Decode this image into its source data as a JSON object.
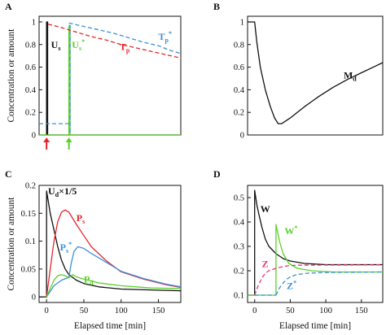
{
  "figure": {
    "ylabel": "Concentration or amount",
    "xlabel": "Elapsed time [min]"
  },
  "chart_data": [
    {
      "panel": "A",
      "type": "line",
      "xlim": [
        -10,
        180
      ],
      "ylim": [
        0,
        1.05
      ],
      "x_ticks": [],
      "y_ticks": [
        0,
        0.2,
        0.4,
        0.6,
        0.8,
        1
      ],
      "arrows": [
        {
          "x": 0,
          "color": "#e8242b"
        },
        {
          "x": 30,
          "color": "#5ad02b"
        }
      ],
      "series": [
        {
          "name": "Us",
          "label": "U",
          "sub": "s",
          "sup": "",
          "color": "#111111",
          "dash": false,
          "label_at": [
            6,
            0.77
          ],
          "points": [
            [
              -10,
              0
            ],
            [
              0,
              0
            ],
            [
              0,
              1
            ],
            [
              1.5,
              1
            ],
            [
              1.5,
              0
            ],
            [
              180,
              0
            ]
          ]
        },
        {
          "name": "Us*",
          "label": "U",
          "sub": "s",
          "sup": "*",
          "color": "#5ad02b",
          "dash": false,
          "label_at": [
            34,
            0.77
          ],
          "points": [
            [
              -10,
              0
            ],
            [
              30,
              0
            ],
            [
              30,
              0.96
            ],
            [
              31.5,
              0.96
            ],
            [
              31.5,
              0
            ],
            [
              180,
              0
            ]
          ]
        },
        {
          "name": "Us* (dashed)",
          "label": "",
          "sub": "",
          "sup": "",
          "color": "#3b8fd8",
          "dash": true,
          "label_at": null,
          "points": [
            [
              30,
              0.97
            ],
            [
              31.5,
              0.97
            ],
            [
              31.5,
              0.01
            ]
          ]
        },
        {
          "name": "Tp",
          "label": "T",
          "sub": "p",
          "sup": "",
          "color": "#e8242b",
          "dash": true,
          "label_at": [
            98,
            0.75
          ],
          "points": [
            [
              2,
              0.98
            ],
            [
              20,
              0.95
            ],
            [
              40,
              0.91
            ],
            [
              60,
              0.87
            ],
            [
              80,
              0.84
            ],
            [
              100,
              0.8
            ],
            [
              120,
              0.77
            ],
            [
              140,
              0.74
            ],
            [
              160,
              0.71
            ],
            [
              180,
              0.68
            ]
          ]
        },
        {
          "name": "Tp*",
          "label": "T",
          "sub": "p",
          "sup": "*",
          "color": "#3b8fd8",
          "dash": true,
          "label_at": [
            150,
            0.84
          ],
          "points": [
            [
              30,
              0.99
            ],
            [
              50,
              0.96
            ],
            [
              70,
              0.93
            ],
            [
              90,
              0.9
            ],
            [
              110,
              0.86
            ],
            [
              130,
              0.82
            ],
            [
              150,
              0.79
            ],
            [
              165,
              0.75
            ],
            [
              180,
              0.72
            ]
          ]
        },
        {
          "name": "baseline",
          "label": "",
          "sub": "",
          "sup": "",
          "color": "#3b8fd8",
          "dash": true,
          "label_at": null,
          "points": [
            [
              -10,
              0.1
            ],
            [
              30,
              0.1
            ]
          ]
        }
      ]
    },
    {
      "panel": "B",
      "type": "line",
      "xlim": [
        -10,
        180
      ],
      "ylim": [
        0,
        1.05
      ],
      "x_ticks": [],
      "y_ticks": [
        0,
        0.2,
        0.4,
        0.6,
        0.8,
        1
      ],
      "arrows": [],
      "series": [
        {
          "name": "Md",
          "label": "M",
          "sub": "d",
          "sup": "",
          "color": "#111111",
          "dash": false,
          "label_at": [
            125,
            0.5
          ],
          "points": [
            [
              -10,
              1
            ],
            [
              0,
              1
            ],
            [
              3,
              0.82
            ],
            [
              8,
              0.6
            ],
            [
              15,
              0.4
            ],
            [
              22,
              0.25
            ],
            [
              28,
              0.15
            ],
            [
              33,
              0.1
            ],
            [
              38,
              0.1
            ],
            [
              50,
              0.15
            ],
            [
              70,
              0.25
            ],
            [
              90,
              0.34
            ],
            [
              110,
              0.42
            ],
            [
              130,
              0.49
            ],
            [
              150,
              0.55
            ],
            [
              170,
              0.61
            ],
            [
              180,
              0.64
            ]
          ]
        }
      ]
    },
    {
      "panel": "C",
      "type": "line",
      "xlim": [
        -10,
        180
      ],
      "ylim": [
        -0.01,
        0.2
      ],
      "x_ticks": [
        0,
        50,
        100,
        150
      ],
      "y_ticks": [
        0,
        0.05,
        0.1,
        0.15,
        0.2
      ],
      "arrows": [],
      "series": [
        {
          "name": "Ud x 1/5",
          "label": "U",
          "sub": "d",
          "sup": "",
          "suffix": "×1/5",
          "color": "#111111",
          "dash": false,
          "label_at": [
            2,
            0.184
          ],
          "points": [
            [
              -10,
              0
            ],
            [
              0,
              0
            ],
            [
              0,
              0.19
            ],
            [
              5,
              0.15
            ],
            [
              10,
              0.12
            ],
            [
              15,
              0.09
            ],
            [
              20,
              0.066
            ],
            [
              25,
              0.05
            ],
            [
              30,
              0.04
            ],
            [
              40,
              0.03
            ],
            [
              50,
              0.024
            ],
            [
              70,
              0.018
            ],
            [
              100,
              0.014
            ],
            [
              150,
              0.012
            ],
            [
              180,
              0.011
            ]
          ]
        },
        {
          "name": "Ps",
          "label": "P",
          "sub": "s",
          "sup": "",
          "color": "#e8242b",
          "dash": false,
          "label_at": [
            40,
            0.136
          ],
          "points": [
            [
              0,
              0
            ],
            [
              5,
              0.05
            ],
            [
              10,
              0.1
            ],
            [
              15,
              0.135
            ],
            [
              20,
              0.152
            ],
            [
              25,
              0.156
            ],
            [
              30,
              0.152
            ],
            [
              40,
              0.13
            ],
            [
              50,
              0.11
            ],
            [
              60,
              0.09
            ],
            [
              80,
              0.065
            ],
            [
              100,
              0.045
            ],
            [
              130,
              0.032
            ],
            [
              160,
              0.022
            ],
            [
              180,
              0.017
            ]
          ]
        },
        {
          "name": "Ps*",
          "label": "P",
          "sub": "s",
          "sup": "*",
          "color": "#3b8fd8",
          "dash": false,
          "label_at": [
            18,
            0.083
          ],
          "points": [
            [
              0,
              0
            ],
            [
              5,
              0.01
            ],
            [
              10,
              0.02
            ],
            [
              20,
              0.03
            ],
            [
              30,
              0.035
            ],
            [
              33,
              0.06
            ],
            [
              37,
              0.082
            ],
            [
              42,
              0.09
            ],
            [
              50,
              0.087
            ],
            [
              60,
              0.078
            ],
            [
              80,
              0.062
            ],
            [
              100,
              0.046
            ],
            [
              130,
              0.033
            ],
            [
              160,
              0.023
            ],
            [
              180,
              0.018
            ]
          ]
        },
        {
          "name": "Pd",
          "label": "P",
          "sub": "d",
          "sup": "",
          "color": "#5ad02b",
          "dash": false,
          "label_at": [
            50,
            0.026
          ],
          "points": [
            [
              0,
              0
            ],
            [
              5,
              0.015
            ],
            [
              10,
              0.03
            ],
            [
              15,
              0.038
            ],
            [
              20,
              0.04
            ],
            [
              25,
              0.038
            ],
            [
              30,
              0.034
            ],
            [
              35,
              0.04
            ],
            [
              40,
              0.036
            ],
            [
              50,
              0.032
            ],
            [
              70,
              0.025
            ],
            [
              100,
              0.02
            ],
            [
              140,
              0.016
            ],
            [
              180,
              0.015
            ]
          ]
        }
      ]
    },
    {
      "panel": "D",
      "type": "line",
      "xlim": [
        -10,
        180
      ],
      "ylim": [
        0.07,
        0.55
      ],
      "x_ticks": [
        0,
        50,
        100,
        150
      ],
      "y_ticks": [
        0.1,
        0.2,
        0.3,
        0.4,
        0.5
      ],
      "arrows": [],
      "series": [
        {
          "name": "W",
          "label": "W",
          "sub": "",
          "sup": "",
          "color": "#111111",
          "dash": false,
          "label_at": [
            8,
            0.44
          ],
          "points": [
            [
              -10,
              0.1
            ],
            [
              0,
              0.1
            ],
            [
              0,
              0.53
            ],
            [
              3,
              0.47
            ],
            [
              6,
              0.43
            ],
            [
              10,
              0.38
            ],
            [
              15,
              0.33
            ],
            [
              20,
              0.3
            ],
            [
              30,
              0.27
            ],
            [
              40,
              0.25
            ],
            [
              50,
              0.24
            ],
            [
              70,
              0.23
            ],
            [
              100,
              0.225
            ],
            [
              180,
              0.225
            ]
          ]
        },
        {
          "name": "W*",
          "label": "W",
          "sub": "",
          "sup": "*",
          "color": "#5ad02b",
          "dash": false,
          "label_at": [
            42,
            0.35
          ],
          "points": [
            [
              -10,
              0.1
            ],
            [
              30,
              0.1
            ],
            [
              30,
              0.39
            ],
            [
              35,
              0.32
            ],
            [
              40,
              0.27
            ],
            [
              48,
              0.23
            ],
            [
              60,
              0.21
            ],
            [
              80,
              0.2
            ],
            [
              110,
              0.195
            ],
            [
              180,
              0.195
            ]
          ]
        },
        {
          "name": "Z",
          "label": "Z",
          "sub": "",
          "sup": "",
          "color": "#e8366e",
          "dash": true,
          "label_at": [
            10,
            0.215
          ],
          "points": [
            [
              0,
              0.1
            ],
            [
              5,
              0.14
            ],
            [
              10,
              0.17
            ],
            [
              15,
              0.19
            ],
            [
              20,
              0.2
            ],
            [
              30,
              0.21
            ],
            [
              45,
              0.22
            ],
            [
              60,
              0.223
            ],
            [
              180,
              0.224
            ]
          ]
        },
        {
          "name": "Z*",
          "label": "Z",
          "sub": "",
          "sup": "*",
          "color": "#3b8fd8",
          "dash": true,
          "label_at": [
            45,
            0.125
          ],
          "points": [
            [
              30,
              0.1
            ],
            [
              35,
              0.13
            ],
            [
              40,
              0.15
            ],
            [
              45,
              0.165
            ],
            [
              50,
              0.175
            ],
            [
              60,
              0.185
            ],
            [
              75,
              0.19
            ],
            [
              100,
              0.193
            ],
            [
              180,
              0.195
            ]
          ]
        },
        {
          "name": "baseline",
          "label": "",
          "sub": "",
          "sup": "",
          "color": "#3b8fd8",
          "dash": true,
          "label_at": null,
          "points": [
            [
              0,
              0.1
            ],
            [
              30,
              0.1
            ]
          ]
        }
      ]
    }
  ]
}
